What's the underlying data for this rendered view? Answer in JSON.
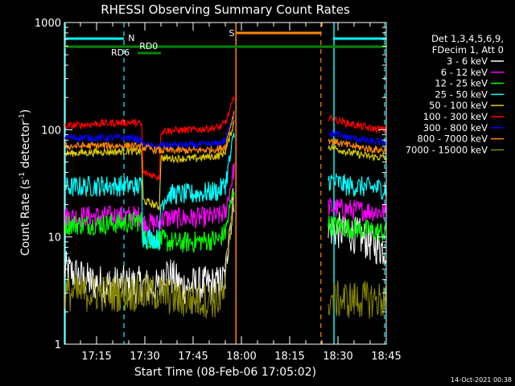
{
  "chart_data": {
    "type": "line",
    "title": "RHESSI Observing Summary Count Rates",
    "xlabel": "Start Time (08-Feb-06 17:05:02)",
    "ylabel_main": "Count Rate (s",
    "ylabel_sup1": "-1",
    "ylabel_mid": " detector",
    "ylabel_sup2": "-1",
    "ylabel_end": ")",
    "yscale": "log",
    "ylim": [
      1,
      1000
    ],
    "xlim_minutes": [
      0,
      100
    ],
    "x_ticks": [
      {
        "m": 10,
        "label": "17:15"
      },
      {
        "m": 25,
        "label": "17:30"
      },
      {
        "m": 40,
        "label": "17:45"
      },
      {
        "m": 55,
        "label": "18:00"
      },
      {
        "m": 70,
        "label": "18:15"
      },
      {
        "m": 85,
        "label": "18:30"
      },
      {
        "m": 100,
        "label": "18:45"
      }
    ],
    "y_ticks": [
      {
        "v": 1,
        "label": "1"
      },
      {
        "v": 10,
        "label": "10"
      },
      {
        "v": 100,
        "label": "100"
      },
      {
        "v": 1000,
        "label": "1000"
      }
    ],
    "legend_header": [
      "Det 1,3,4,5,6,9,",
      "FDecim 1, Att 0"
    ],
    "legend_placement": "right",
    "series": [
      {
        "name": "3 - 6 keV",
        "color": "#ffffff",
        "segments": [
          {
            "pts": [
              [
                0,
                5.0
              ],
              [
                8,
                3.8
              ],
              [
                14,
                3.6
              ],
              [
                22,
                3.6
              ],
              [
                30,
                3.3
              ],
              [
                31,
                5.0
              ],
              [
                36,
                3.5
              ],
              [
                48,
                3.6
              ],
              [
                50,
                4.2
              ],
              [
                51,
                10
              ],
              [
                52.8,
                25
              ]
            ]
          },
          {
            "pts": [
              [
                82,
                12
              ],
              [
                88,
                11
              ],
              [
                92,
                10
              ],
              [
                95,
                8.8
              ],
              [
                98,
                8
              ],
              [
                100,
                7.8
              ]
            ]
          }
        ]
      },
      {
        "name": "6 - 12 keV",
        "color": "#ff00ff",
        "segments": [
          {
            "pts": [
              [
                0,
                15.5
              ],
              [
                20,
                15.7
              ],
              [
                22,
                15.8
              ],
              [
                24,
                15.5
              ],
              [
                24.5,
                13.5
              ],
              [
                29.5,
                13.3
              ],
              [
                30,
                14.5
              ],
              [
                32,
                15
              ],
              [
                40,
                15
              ],
              [
                48,
                15.5
              ],
              [
                50,
                17
              ],
              [
                52.8,
                45
              ]
            ]
          },
          {
            "pts": [
              [
                82,
                19
              ],
              [
                88,
                18
              ],
              [
                95,
                17.5
              ],
              [
                100,
                17
              ]
            ]
          }
        ]
      },
      {
        "name": "12 - 25 keV",
        "color": "#00ff00",
        "segments": [
          {
            "pts": [
              [
                0,
                13
              ],
              [
                12,
                13.2
              ],
              [
                20,
                13.5
              ],
              [
                22,
                14
              ],
              [
                24,
                14
              ],
              [
                24.5,
                9.5
              ],
              [
                29.5,
                9.5
              ],
              [
                30,
                9.5
              ],
              [
                32,
                9
              ],
              [
                36,
                8.8
              ],
              [
                48,
                9.5
              ],
              [
                50,
                11
              ],
              [
                52.8,
                30
              ]
            ]
          },
          {
            "pts": [
              [
                82,
                13
              ],
              [
                88,
                12.2
              ],
              [
                95,
                11.5
              ],
              [
                100,
                11
              ]
            ]
          }
        ]
      },
      {
        "name": "25 - 50 keV",
        "color": "#00ffff",
        "segments": [
          {
            "pts": [
              [
                0,
                29
              ],
              [
                12,
                30
              ],
              [
                20,
                30
              ],
              [
                22,
                30
              ],
              [
                24,
                30
              ],
              [
                24.5,
                10
              ],
              [
                29.5,
                9.5
              ],
              [
                30,
                20
              ],
              [
                32,
                25
              ],
              [
                40,
                25
              ],
              [
                48,
                27
              ],
              [
                50,
                31
              ],
              [
                52.8,
                90
              ]
            ]
          },
          {
            "pts": [
              [
                82,
                34
              ],
              [
                88,
                30
              ],
              [
                95,
                29
              ],
              [
                100,
                28
              ]
            ]
          }
        ]
      },
      {
        "name": "50 - 100 keV",
        "color": "#ddcc00",
        "segments": [
          {
            "pts": [
              [
                0,
                60
              ],
              [
                12,
                62
              ],
              [
                20,
                63
              ],
              [
                22,
                63
              ],
              [
                24,
                62
              ],
              [
                24.5,
                22
              ],
              [
                29.5,
                19
              ],
              [
                30,
                55
              ],
              [
                32,
                54
              ],
              [
                40,
                54
              ],
              [
                48,
                57
              ],
              [
                50,
                62
              ],
              [
                52.8,
                120
              ]
            ]
          },
          {
            "pts": [
              [
                82,
                70
              ],
              [
                88,
                62
              ],
              [
                95,
                56
              ],
              [
                100,
                55
              ]
            ]
          }
        ]
      },
      {
        "name": "100 - 300 keV",
        "color": "#ff0000",
        "segments": [
          {
            "pts": [
              [
                0,
                108
              ],
              [
                12,
                115
              ],
              [
                20,
                117
              ],
              [
                22,
                117
              ],
              [
                24,
                112
              ],
              [
                24.5,
                40
              ],
              [
                29.5,
                36
              ],
              [
                30,
                96
              ],
              [
                32,
                98
              ],
              [
                40,
                100
              ],
              [
                48,
                105
              ],
              [
                50,
                115
              ],
              [
                52.8,
                200
              ]
            ]
          },
          {
            "pts": [
              [
                82,
                130
              ],
              [
                88,
                115
              ],
              [
                95,
                103
              ],
              [
                100,
                100
              ]
            ]
          }
        ]
      },
      {
        "name": "300 - 800 keV",
        "color": "#0000ff",
        "segments": [
          {
            "pts": [
              [
                0,
                85
              ],
              [
                12,
                84
              ],
              [
                20,
                84
              ],
              [
                22,
                83
              ],
              [
                24,
                78
              ],
              [
                24.5,
                72
              ],
              [
                29.5,
                68
              ],
              [
                30,
                72
              ],
              [
                32,
                72
              ],
              [
                40,
                72
              ],
              [
                48,
                74
              ],
              [
                50,
                80
              ],
              [
                52.8,
                140
              ]
            ]
          },
          {
            "pts": [
              [
                82,
                95
              ],
              [
                88,
                85
              ],
              [
                95,
                78
              ],
              [
                100,
                76
              ]
            ]
          }
        ]
      },
      {
        "name": "800 - 7000 keV",
        "color": "#ff8800",
        "segments": [
          {
            "pts": [
              [
                0,
                70
              ],
              [
                12,
                71
              ],
              [
                20,
                71
              ],
              [
                22,
                70
              ],
              [
                24,
                69
              ],
              [
                24.5,
                68
              ],
              [
                29.5,
                64
              ],
              [
                30,
                64
              ],
              [
                32,
                64
              ],
              [
                40,
                64
              ],
              [
                48,
                66
              ],
              [
                50,
                70
              ],
              [
                52.8,
                150
              ]
            ]
          },
          {
            "pts": [
              [
                82,
                80
              ],
              [
                88,
                72
              ],
              [
                95,
                66
              ],
              [
                100,
                64
              ]
            ]
          }
        ]
      },
      {
        "name": "7000 - 15000 keV",
        "color": "#888800",
        "segments": [
          {
            "pts": [
              [
                0,
                3.0
              ],
              [
                8,
                3.0
              ],
              [
                14,
                3.0
              ],
              [
                22,
                3.0
              ],
              [
                24,
                3.0
              ],
              [
                24.5,
                3.0
              ],
              [
                29.5,
                3.0
              ],
              [
                30,
                3.0
              ],
              [
                36,
                2.6
              ],
              [
                48,
                2.6
              ],
              [
                50,
                3.0
              ],
              [
                51,
                12
              ],
              [
                52.8,
                18
              ]
            ]
          },
          {
            "pts": [
              [
                82,
                2.6
              ],
              [
                90,
                2.6
              ],
              [
                100,
                2.6
              ]
            ]
          }
        ]
      }
    ],
    "annotations": {
      "night_label": "N",
      "saa_label": "S",
      "rd0_label": "RD0",
      "rd6_label": "RD6",
      "night_intervals": [
        [
          0,
          18.5
        ],
        [
          83.5,
          100
        ]
      ],
      "night_colour": "#00ffff",
      "saa_interval": [
        53.3,
        79.7
      ],
      "saa_colour": "#ff8800",
      "rd_full_interval": [
        0,
        100
      ],
      "rd_colour": "#008800",
      "rd_short_interval": [
        22.8,
        30
      ],
      "cyan_dashes": [
        18.5,
        99.5
      ],
      "cyan_solid": [
        0,
        83.5
      ],
      "orange_dashes": [
        79.7
      ],
      "orange_solid": [
        53.3
      ]
    }
  },
  "timestamp": "14-Oct-2021 00:38"
}
